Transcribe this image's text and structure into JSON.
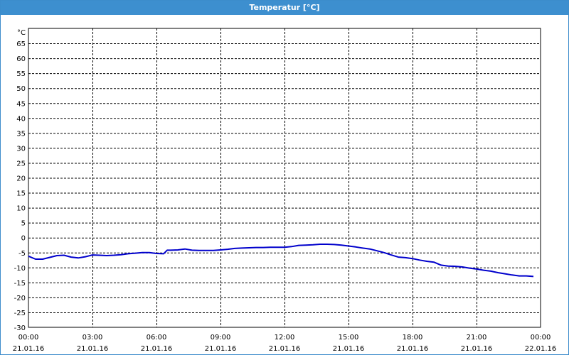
{
  "window": {
    "title": "Temperatur [°C]"
  },
  "chart_data": {
    "type": "line",
    "title": "Temperatur [°C]",
    "ylabel": "°C",
    "xlabel": "",
    "ylim": [
      -30,
      65
    ],
    "y_ticks": [
      "65",
      "60",
      "55",
      "50",
      "45",
      "40",
      "35",
      "30",
      "25",
      "20",
      "15",
      "10",
      "5",
      "0",
      "-5",
      "-10",
      "-15",
      "-20",
      "-25",
      "-30"
    ],
    "x_ticks": [
      {
        "time": "00:00",
        "date": "21.01.16"
      },
      {
        "time": "03:00",
        "date": "21.01.16"
      },
      {
        "time": "06:00",
        "date": "21.01.16"
      },
      {
        "time": "09:00",
        "date": "21.01.16"
      },
      {
        "time": "12:00",
        "date": "21.01.16"
      },
      {
        "time": "15:00",
        "date": "21.01.16"
      },
      {
        "time": "18:00",
        "date": "21.01.16"
      },
      {
        "time": "21:00",
        "date": "21.01.16"
      },
      {
        "time": "00:00",
        "date": "22.01.16"
      }
    ],
    "grid": true,
    "line_color": "#0000cc",
    "series": [
      {
        "x": [
          "00:00",
          "00:20",
          "00:40",
          "01:00",
          "01:20",
          "01:40",
          "02:00",
          "02:20",
          "02:40",
          "03:00",
          "03:20",
          "03:40",
          "04:00",
          "04:20",
          "04:40",
          "05:00",
          "05:20",
          "05:40",
          "06:00",
          "06:20",
          "06:30",
          "06:40",
          "07:00",
          "07:20",
          "07:40",
          "08:00",
          "08:20",
          "08:40",
          "09:00",
          "09:20",
          "09:40",
          "10:00",
          "10:20",
          "10:40",
          "11:00",
          "11:20",
          "11:40",
          "12:00",
          "12:20",
          "12:40",
          "13:00",
          "13:20",
          "13:40",
          "14:00",
          "14:20",
          "14:40",
          "15:00",
          "15:20",
          "15:40",
          "16:00",
          "16:20",
          "16:40",
          "17:00",
          "17:20",
          "17:40",
          "18:00",
          "18:20",
          "18:40",
          "19:00",
          "19:20",
          "19:40",
          "20:00",
          "20:20",
          "20:40",
          "21:00",
          "21:20",
          "21:40",
          "22:00",
          "22:20",
          "22:40",
          "23:00",
          "23:20",
          "23:40"
        ],
        "values": [
          -6.2,
          -7.2,
          -7.2,
          -6.6,
          -6.0,
          -5.9,
          -6.5,
          -6.8,
          -6.4,
          -5.8,
          -5.9,
          -6.0,
          -5.9,
          -5.7,
          -5.4,
          -5.2,
          -5.0,
          -5.0,
          -5.3,
          -5.4,
          -4.2,
          -4.2,
          -4.1,
          -3.8,
          -4.2,
          -4.3,
          -4.3,
          -4.3,
          -4.1,
          -3.9,
          -3.6,
          -3.5,
          -3.4,
          -3.3,
          -3.3,
          -3.2,
          -3.2,
          -3.2,
          -3.0,
          -2.6,
          -2.5,
          -2.4,
          -2.2,
          -2.2,
          -2.3,
          -2.5,
          -2.8,
          -3.1,
          -3.5,
          -3.8,
          -4.4,
          -5.0,
          -5.8,
          -6.5,
          -6.7,
          -7.0,
          -7.5,
          -7.9,
          -8.2,
          -9.2,
          -9.5,
          -9.6,
          -9.8,
          -10.2,
          -10.5,
          -10.9,
          -11.2,
          -11.7,
          -12.1,
          -12.5,
          -12.8,
          -12.8,
          -13.0
        ]
      }
    ]
  }
}
